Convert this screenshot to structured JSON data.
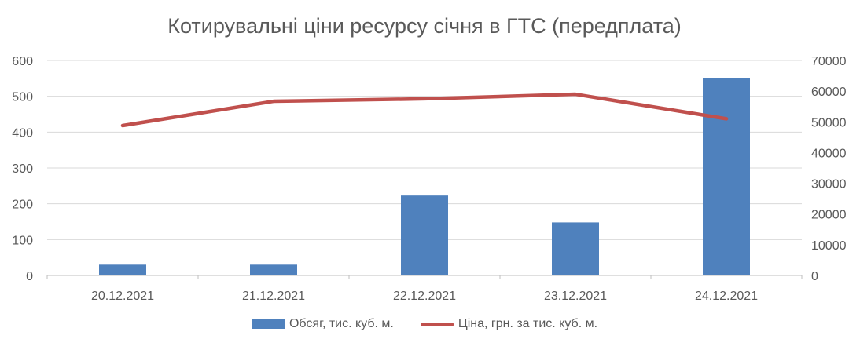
{
  "chart_data": {
    "type": "bar",
    "title": "Котирувальні ціни ресурсу січня в ГТС (передплата)",
    "categories": [
      "20.12.2021",
      "21.12.2021",
      "22.12.2021",
      "23.12.2021",
      "24.12.2021"
    ],
    "series": [
      {
        "name": "Обсяг, тис. куб. м.",
        "type": "bar",
        "axis": "left",
        "color": "#4F81BD",
        "values": [
          30,
          30,
          223,
          148,
          550
        ]
      },
      {
        "name": "Ціна, грн. за тис. куб. м.",
        "type": "line",
        "axis": "right",
        "color": "#C0504D",
        "values": [
          48800,
          56700,
          57500,
          59000,
          51000
        ]
      }
    ],
    "y_left": {
      "min": 0,
      "max": 600,
      "ticks": [
        "0",
        "100",
        "200",
        "300",
        "400",
        "500",
        "600"
      ]
    },
    "y_right": {
      "min": 0,
      "max": 70000,
      "ticks": [
        "0",
        "10000",
        "20000",
        "30000",
        "40000",
        "50000",
        "60000",
        "70000"
      ]
    },
    "grid": true,
    "legend_position": "bottom"
  }
}
